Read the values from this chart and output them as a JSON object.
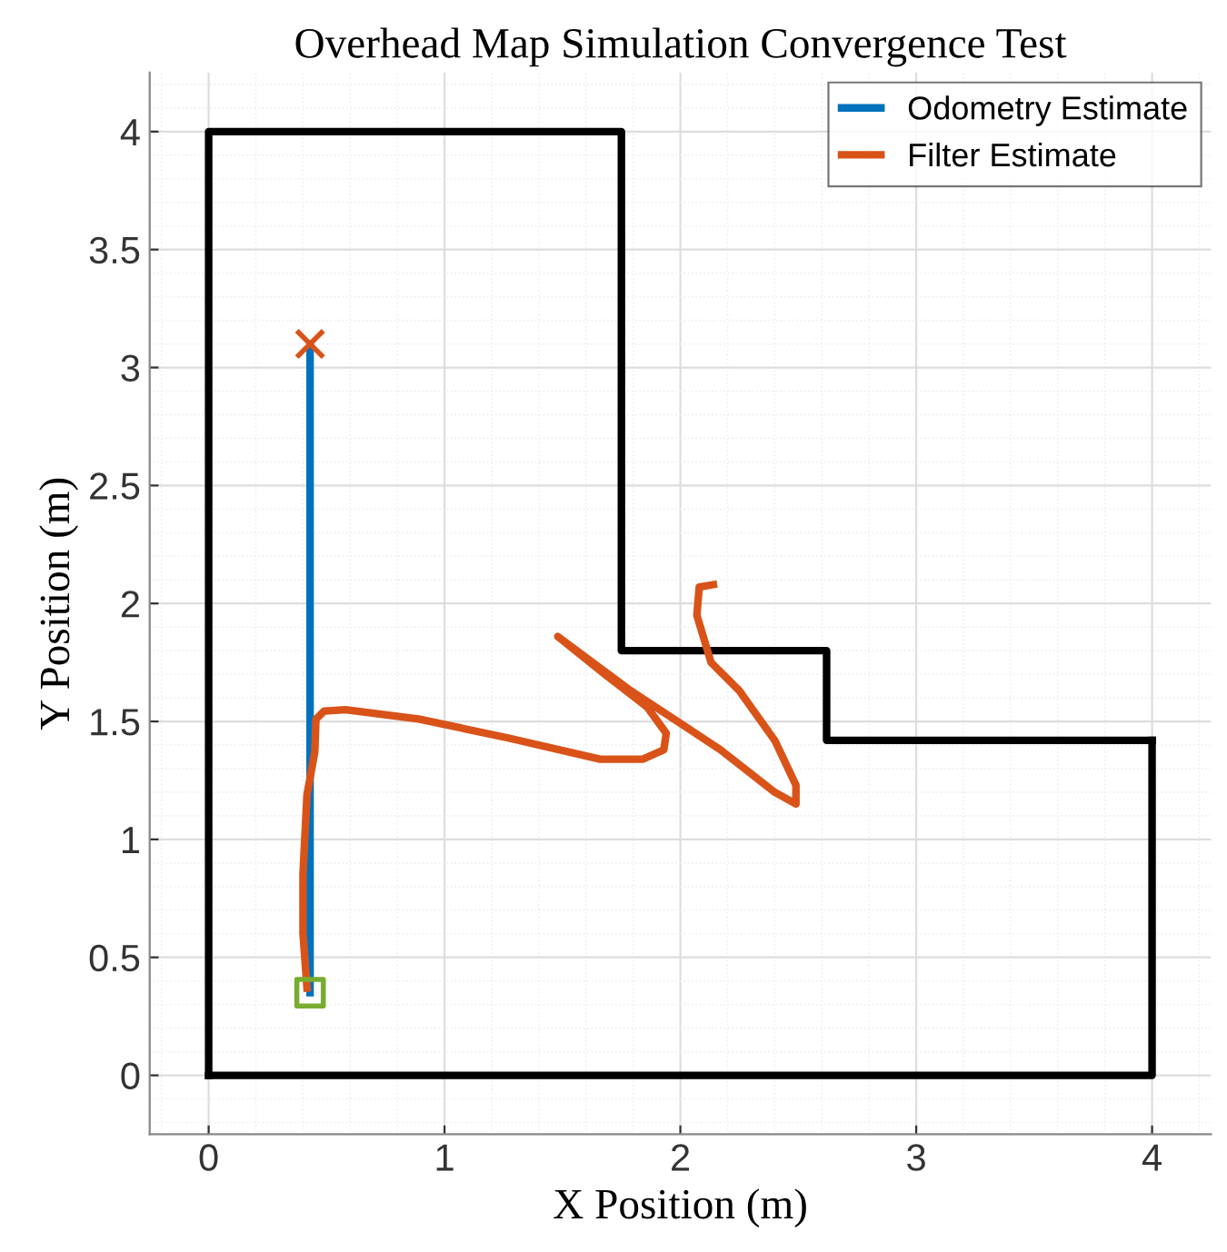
{
  "chart_data": {
    "type": "line",
    "title": "Overhead Map Simulation Convergence Test",
    "xlabel": "X Position (m)",
    "ylabel": "Y Position (m)",
    "xlim": [
      -0.25,
      4.25
    ],
    "ylim": [
      -0.25,
      4.25
    ],
    "xticks": [
      0,
      1,
      2,
      3,
      4
    ],
    "yticks": [
      0,
      0.5,
      1,
      1.5,
      2,
      2.5,
      3,
      3.5,
      4
    ],
    "grid": true,
    "legend": "top right",
    "series": [
      {
        "color": "#000000",
        "x": [
          0,
          0,
          1.75,
          1.75,
          2.62,
          2.62,
          4
        ],
        "values": [
          0,
          4,
          4,
          1.8,
          1.8,
          1.42,
          1.42
        ]
      },
      {
        "color": "#000000",
        "x": [
          4,
          4,
          0
        ],
        "values": [
          1.42,
          0,
          0
        ]
      },
      {
        "name": "Odometry Estimate",
        "color": "#0072bd",
        "x": [
          0.43,
          0.43
        ],
        "values": [
          0.35,
          3.1
        ]
      },
      {
        "name": "Filter Estimate",
        "color": "#d95319",
        "x": [
          0.417,
          0.4,
          0.4,
          0.417,
          0.45,
          0.455,
          0.49,
          0.58,
          0.89,
          1.27,
          1.66,
          1.84,
          1.93,
          1.94,
          1.86,
          1.68,
          1.48,
          1.79,
          2.17,
          2.4,
          2.49,
          2.49,
          2.4,
          2.25,
          2.13,
          2.07,
          2.08,
          2.14
        ],
        "values": [
          0.37,
          0.6,
          0.855,
          1.19,
          1.37,
          1.51,
          1.544,
          1.55,
          1.51,
          1.43,
          1.34,
          1.34,
          1.38,
          1.45,
          1.56,
          1.7,
          1.86,
          1.63,
          1.38,
          1.2,
          1.15,
          1.23,
          1.42,
          1.63,
          1.75,
          1.95,
          2.07,
          2.08
        ]
      },
      {
        "type": "scatter",
        "marker": "square",
        "color": "#77ac30",
        "x": [
          0.43
        ],
        "values": [
          0.35
        ]
      },
      {
        "type": "scatter",
        "marker": "cross",
        "color": "#d95319",
        "x": [
          0.43
        ],
        "values": [
          3.1
        ]
      }
    ]
  }
}
